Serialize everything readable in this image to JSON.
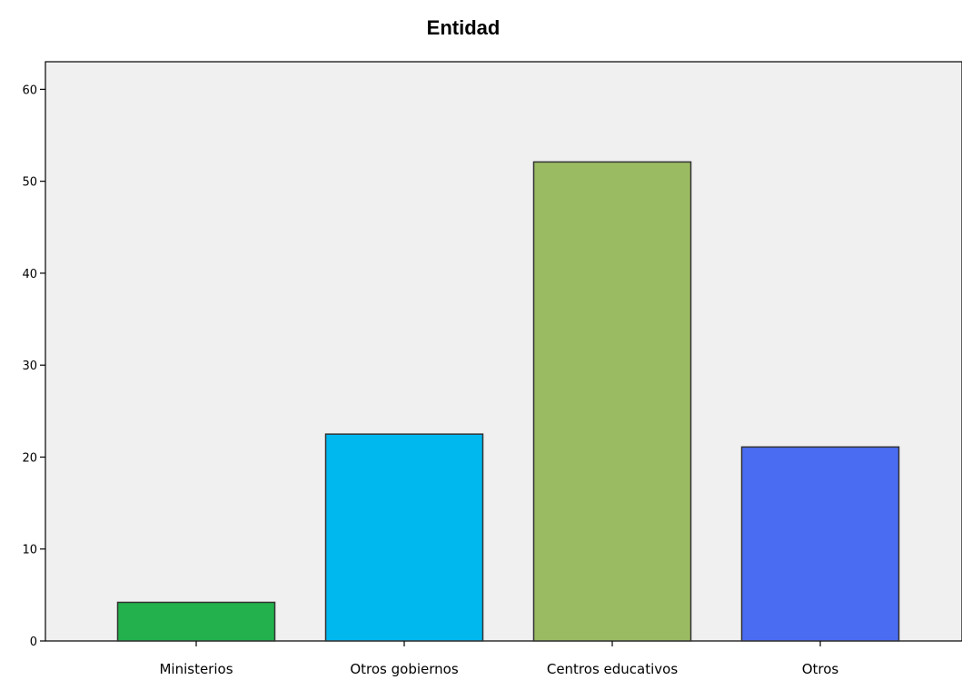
{
  "chart_data": {
    "type": "bar",
    "title": "Entidad",
    "xlabel": "",
    "ylabel": "",
    "categories": [
      "Ministerios",
      "Otros gobiernos",
      "Centros educativos",
      "Otros"
    ],
    "values": [
      4.2,
      22.5,
      52.1,
      21.1
    ],
    "colors": [
      "#22b14c",
      "#00b7ee",
      "#9bbb63",
      "#4a6cf2"
    ],
    "ylim": [
      0,
      63
    ],
    "yticks": [
      0,
      10,
      20,
      30,
      40,
      50,
      60
    ],
    "plot_background": "#f0f0f0",
    "bar_edge_color": "#333333",
    "grid": false,
    "legend": "none"
  }
}
